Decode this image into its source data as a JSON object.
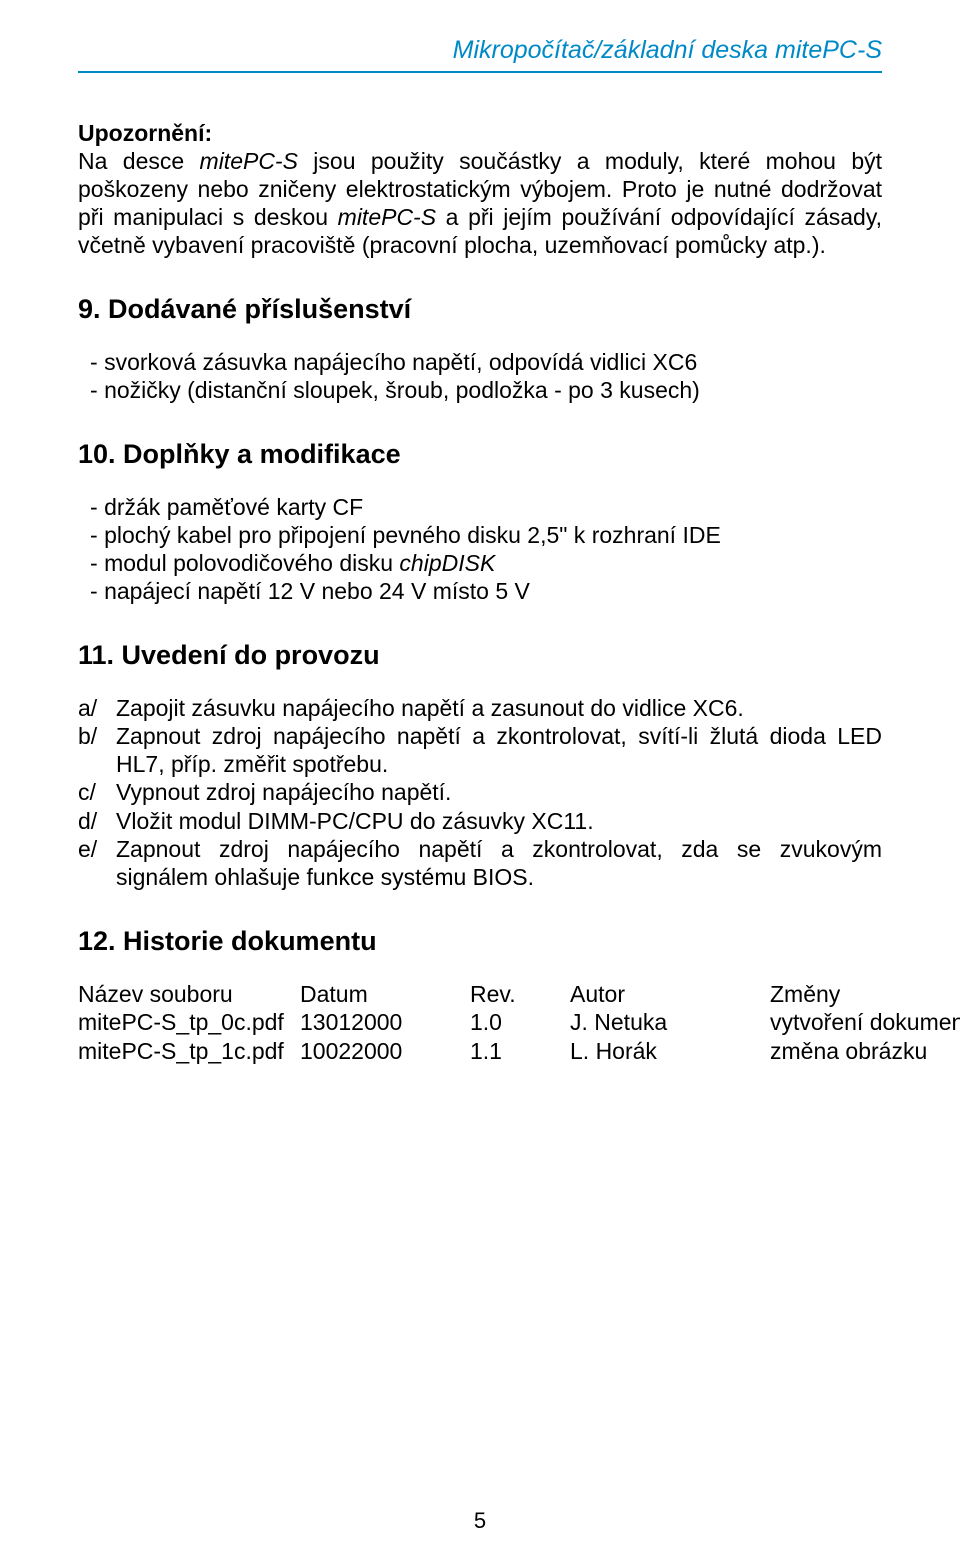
{
  "header": {
    "title_prefix": "Mikropočítač/základní deska ",
    "title_product": "mitePC-S",
    "color": "#0089c7"
  },
  "warning": {
    "label": "Upozornění:",
    "text_1a": "Na desce ",
    "text_1b": "mitePC-S",
    "text_1c": " jsou použity součástky a moduly, které mohou být poškozeny nebo zničeny elektrostatickým výbojem. Proto je nutné dodržovat při manipulaci s deskou ",
    "text_1d": "mitePC-S",
    "text_1e": " a při jejím používání odpovídající zásady, včetně vybavení pracoviště (pracovní plocha, uzemňovací pomůcky atp.)."
  },
  "sec9": {
    "title": "9. Dodávané příslušenství",
    "items": [
      "svorková zásuvka napájecího napětí, odpovídá vidlici XC6",
      "nožičky (distanční sloupek, šroub, podložka - po 3 kusech)"
    ]
  },
  "sec10": {
    "title": "10. Doplňky a modifikace",
    "item1": "držák paměťové karty CF",
    "item2": "plochý kabel pro připojení pevného disku 2,5\" k rozhraní IDE",
    "item3_a": "modul polovodičového disku ",
    "item3_b": "chipDISK",
    "item4": "napájecí napětí 12 V nebo 24 V místo 5 V"
  },
  "sec11": {
    "title": "11. Uvedení do provozu",
    "a_marker": "a/",
    "a": "Zapojit zásuvku napájecího napětí a zasunout do vidlice XC6.",
    "b_marker": "b/",
    "b": "Zapnout zdroj napájecího napětí a zkontrolovat, svítí-li žlutá dioda LED HL7, příp. změřit spotřebu.",
    "c_marker": "c/",
    "c": "Vypnout zdroj napájecího napětí.",
    "d_marker": "d/",
    "d": "Vložit modul DIMM-PC/CPU do zásuvky XC11.",
    "e_marker": "e/",
    "e": "Zapnout zdroj napájecího napětí a zkontrolovat, zda se zvukovým signálem ohlašuje funkce systému BIOS."
  },
  "sec12": {
    "title": "12. Historie dokumentu",
    "columns": [
      "Název souboru",
      "Datum",
      "Rev.",
      "Autor",
      "Změny"
    ],
    "rows": [
      [
        "mitePC-S_tp_0c.pdf",
        "13012000",
        "1.0",
        "J. Netuka",
        "vytvoření dokumentu"
      ],
      [
        "mitePC-S_tp_1c.pdf",
        "10022000",
        "1.1",
        "L. Horák",
        "změna obrázku"
      ]
    ]
  },
  "page_number": "5"
}
